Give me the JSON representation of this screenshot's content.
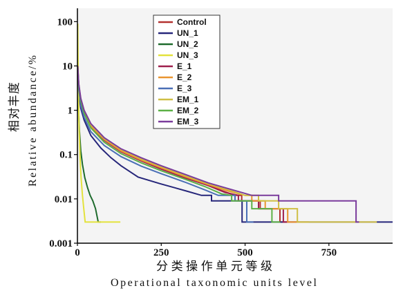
{
  "chart_data": {
    "type": "line",
    "xlabel": [
      "分类操作单元等级",
      "Operational taxonomic units level"
    ],
    "ylabel": [
      "相对丰度",
      "Relative abundance/%"
    ],
    "xlim": [
      0,
      940
    ],
    "ylim": [
      0.001,
      200
    ],
    "yscale": "log",
    "grid": false,
    "legend_position": "upper-left",
    "xticks": [
      {
        "value": 0,
        "label": "0"
      },
      {
        "value": 250,
        "label": "250"
      },
      {
        "value": 500,
        "label": "500"
      },
      {
        "value": 750,
        "label": "750"
      }
    ],
    "yticks": [
      {
        "value": 100,
        "label": "100"
      },
      {
        "value": 10,
        "label": "10"
      },
      {
        "value": 1,
        "label": "1"
      },
      {
        "value": 0.1,
        "label": "0.1"
      },
      {
        "value": 0.01,
        "label": "0.01"
      },
      {
        "value": 0.001,
        "label": "0.001"
      }
    ],
    "series": [
      {
        "name": "Control",
        "color": "#b3312f",
        "points": [
          [
            1,
            8.5
          ],
          [
            4,
            3.7
          ],
          [
            10,
            1.7
          ],
          [
            20,
            0.95
          ],
          [
            40,
            0.45
          ],
          [
            80,
            0.22
          ],
          [
            130,
            0.12
          ],
          [
            190,
            0.076
          ],
          [
            250,
            0.05
          ],
          [
            320,
            0.031
          ],
          [
            390,
            0.02
          ],
          [
            445,
            0.014
          ],
          [
            470,
            0.012
          ],
          [
            490,
            0.012
          ],
          [
            490,
            0.009
          ],
          [
            545,
            0.009
          ],
          [
            545,
            0.006
          ],
          [
            604,
            0.006
          ],
          [
            604,
            0.003
          ],
          [
            630,
            0.003
          ]
        ]
      },
      {
        "name": "UN_1",
        "color": "#26267a",
        "points": [
          [
            1,
            6
          ],
          [
            4,
            2.4
          ],
          [
            10,
            1.1
          ],
          [
            20,
            0.6
          ],
          [
            40,
            0.27
          ],
          [
            70,
            0.14
          ],
          [
            100,
            0.085
          ],
          [
            130,
            0.056
          ],
          [
            181,
            0.031
          ],
          [
            247,
            0.022
          ],
          [
            326,
            0.015
          ],
          [
            370,
            0.012
          ],
          [
            400,
            0.012
          ],
          [
            400,
            0.009
          ],
          [
            491,
            0.009
          ],
          [
            491,
            0.003
          ],
          [
            940,
            0.003
          ]
        ]
      },
      {
        "name": "UN_2",
        "color": "#1d6a2c",
        "points": [
          [
            1,
            5
          ],
          [
            3,
            1.2
          ],
          [
            6,
            0.35
          ],
          [
            10,
            0.12
          ],
          [
            15,
            0.06
          ],
          [
            22,
            0.03
          ],
          [
            30,
            0.018
          ],
          [
            38,
            0.012
          ],
          [
            46,
            0.009
          ],
          [
            54,
            0.006
          ],
          [
            62,
            0.003
          ],
          [
            70,
            0.003
          ]
        ]
      },
      {
        "name": "UN_3",
        "color": "#e3e23c",
        "points": [
          [
            1,
            90
          ],
          [
            2,
            12
          ],
          [
            3,
            2.5
          ],
          [
            5,
            0.4
          ],
          [
            8,
            0.08
          ],
          [
            11,
            0.03
          ],
          [
            15,
            0.012
          ],
          [
            19,
            0.006
          ],
          [
            23,
            0.003
          ],
          [
            128,
            0.003
          ]
        ]
      },
      {
        "name": "E_1",
        "color": "#9e1f4c",
        "points": [
          [
            1,
            9.5
          ],
          [
            4,
            3.8
          ],
          [
            10,
            1.7
          ],
          [
            20,
            0.9
          ],
          [
            40,
            0.43
          ],
          [
            80,
            0.21
          ],
          [
            130,
            0.115
          ],
          [
            190,
            0.072
          ],
          [
            250,
            0.047
          ],
          [
            320,
            0.03
          ],
          [
            390,
            0.02
          ],
          [
            440,
            0.014
          ],
          [
            480,
            0.012
          ],
          [
            480,
            0.009
          ],
          [
            540,
            0.009
          ],
          [
            540,
            0.006
          ],
          [
            614,
            0.006
          ],
          [
            614,
            0.003
          ],
          [
            660,
            0.003
          ]
        ]
      },
      {
        "name": "E_2",
        "color": "#e99530",
        "points": [
          [
            1,
            8
          ],
          [
            4,
            3.5
          ],
          [
            10,
            1.6
          ],
          [
            20,
            0.9
          ],
          [
            40,
            0.44
          ],
          [
            80,
            0.22
          ],
          [
            130,
            0.12
          ],
          [
            190,
            0.075
          ],
          [
            250,
            0.05
          ],
          [
            320,
            0.032
          ],
          [
            390,
            0.021
          ],
          [
            450,
            0.015
          ],
          [
            500,
            0.012
          ],
          [
            520,
            0.012
          ],
          [
            520,
            0.009
          ],
          [
            560,
            0.009
          ],
          [
            560,
            0.006
          ],
          [
            627,
            0.006
          ],
          [
            627,
            0.003
          ],
          [
            690,
            0.003
          ]
        ]
      },
      {
        "name": "E_3",
        "color": "#4a6fb6",
        "points": [
          [
            1,
            7
          ],
          [
            4,
            3
          ],
          [
            10,
            1.3
          ],
          [
            20,
            0.7
          ],
          [
            40,
            0.33
          ],
          [
            80,
            0.16
          ],
          [
            130,
            0.09
          ],
          [
            190,
            0.055
          ],
          [
            250,
            0.037
          ],
          [
            320,
            0.024
          ],
          [
            380,
            0.016
          ],
          [
            420,
            0.012
          ],
          [
            470,
            0.012
          ],
          [
            470,
            0.009
          ],
          [
            505,
            0.009
          ],
          [
            505,
            0.003
          ],
          [
            525,
            0.003
          ]
        ]
      },
      {
        "name": "EM_1",
        "color": "#cfbf45",
        "points": [
          [
            1,
            9
          ],
          [
            4,
            3.9
          ],
          [
            10,
            1.8
          ],
          [
            20,
            1
          ],
          [
            40,
            0.48
          ],
          [
            80,
            0.23
          ],
          [
            130,
            0.13
          ],
          [
            190,
            0.08
          ],
          [
            250,
            0.053
          ],
          [
            320,
            0.034
          ],
          [
            390,
            0.022
          ],
          [
            450,
            0.016
          ],
          [
            500,
            0.012
          ],
          [
            540,
            0.012
          ],
          [
            540,
            0.009
          ],
          [
            600,
            0.009
          ],
          [
            600,
            0.006
          ],
          [
            656,
            0.006
          ],
          [
            656,
            0.003
          ],
          [
            893,
            0.003
          ]
        ]
      },
      {
        "name": "EM_2",
        "color": "#5cb046",
        "points": [
          [
            1,
            9
          ],
          [
            4,
            3.6
          ],
          [
            10,
            1.6
          ],
          [
            20,
            0.85
          ],
          [
            40,
            0.4
          ],
          [
            80,
            0.19
          ],
          [
            130,
            0.105
          ],
          [
            190,
            0.065
          ],
          [
            250,
            0.043
          ],
          [
            320,
            0.028
          ],
          [
            380,
            0.019
          ],
          [
            430,
            0.013
          ],
          [
            460,
            0.012
          ],
          [
            460,
            0.009
          ],
          [
            520,
            0.009
          ],
          [
            520,
            0.006
          ],
          [
            580,
            0.006
          ],
          [
            580,
            0.003
          ],
          [
            605,
            0.003
          ]
        ]
      },
      {
        "name": "EM_3",
        "color": "#7a3b9c",
        "points": [
          [
            1,
            10
          ],
          [
            4,
            4
          ],
          [
            10,
            1.85
          ],
          [
            20,
            1
          ],
          [
            40,
            0.5
          ],
          [
            80,
            0.24
          ],
          [
            130,
            0.135
          ],
          [
            190,
            0.085
          ],
          [
            250,
            0.056
          ],
          [
            320,
            0.036
          ],
          [
            390,
            0.023
          ],
          [
            450,
            0.017
          ],
          [
            520,
            0.012
          ],
          [
            600,
            0.012
          ],
          [
            600,
            0.009
          ],
          [
            831,
            0.009
          ],
          [
            831,
            0.003
          ],
          [
            840,
            0.003
          ]
        ]
      }
    ]
  },
  "colors": {
    "plot_background": "#f4f4f4",
    "axis": "#000000",
    "legend_border": "#333333"
  }
}
